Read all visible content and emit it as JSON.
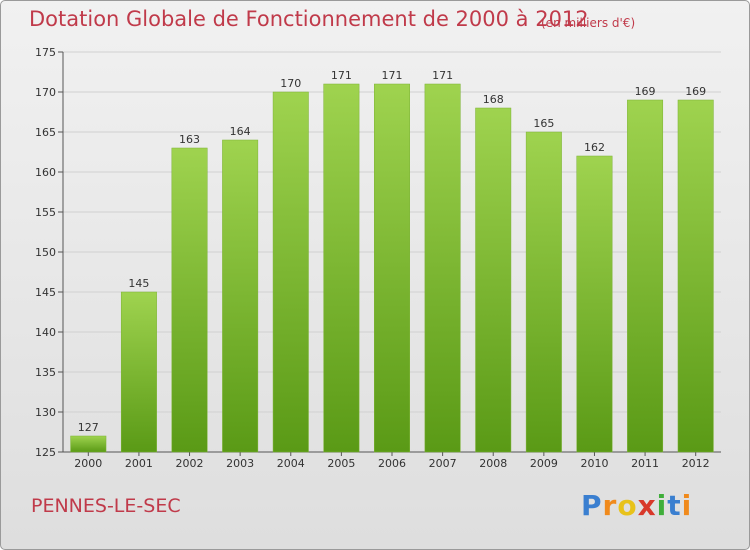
{
  "header": {
    "title": "Dotation Globale de Fonctionnement de 2000 à 2012",
    "unit_note": "(en milliers d'€)"
  },
  "footer": {
    "commune": "PENNES-LE-SEC",
    "logo_text": "Proxiti"
  },
  "colors": {
    "title": "#c03a4a",
    "bar_light": "#9fd34f",
    "bar_dark": "#5a9a16",
    "grid": "#d0d0d0"
  },
  "chart_data": {
    "type": "bar",
    "categories": [
      "2000",
      "2001",
      "2002",
      "2003",
      "2004",
      "2005",
      "2006",
      "2007",
      "2008",
      "2009",
      "2010",
      "2011",
      "2012"
    ],
    "values": [
      127,
      145,
      163,
      164,
      170,
      171,
      171,
      171,
      168,
      165,
      162,
      169,
      169
    ],
    "data_labels": [
      "127",
      "145",
      "163",
      "164",
      "170",
      "171",
      "171",
      "171",
      "168",
      "165",
      "162",
      "169",
      "169"
    ],
    "ylim": [
      125,
      175
    ],
    "yticks": [
      125,
      130,
      135,
      140,
      145,
      150,
      155,
      160,
      165,
      170,
      175
    ],
    "grid": true
  }
}
